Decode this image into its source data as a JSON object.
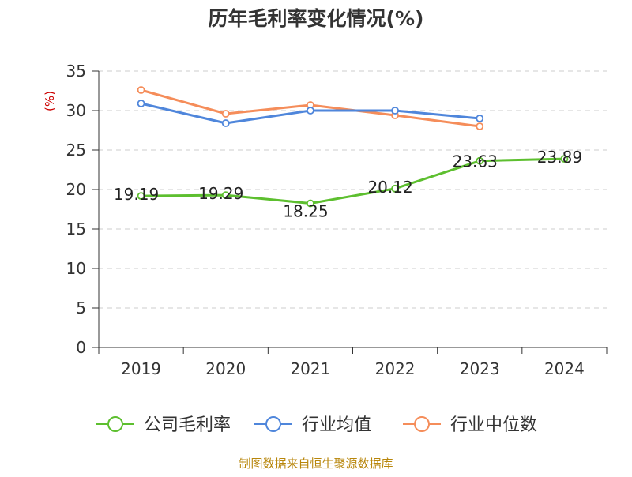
{
  "chart_data": {
    "type": "line",
    "title": "历年毛利率变化情况(%)",
    "ylabel": "(%)",
    "xlabel": "",
    "categories": [
      "2019",
      "2020",
      "2021",
      "2022",
      "2023",
      "2024"
    ],
    "ylim": [
      0,
      35
    ],
    "yticks": [
      0,
      5,
      10,
      15,
      20,
      25,
      30,
      35
    ],
    "grid": true,
    "legend_position": "bottom",
    "series": [
      {
        "name": "公司毛利率",
        "color": "#5dbf2f",
        "values": [
          19.19,
          19.29,
          18.25,
          20.12,
          23.63,
          23.89
        ],
        "labels": [
          "19.19",
          "19.29",
          "18.25",
          "20.12",
          "23.63",
          "23.89"
        ]
      },
      {
        "name": "行业均值",
        "color": "#4f86db",
        "values": [
          30.9,
          28.4,
          30.0,
          30.0,
          29.0,
          null
        ]
      },
      {
        "name": "行业中位数",
        "color": "#f58d5a",
        "values": [
          32.6,
          29.6,
          30.7,
          29.4,
          28.0,
          null
        ]
      }
    ]
  },
  "colors": {
    "title": "#333333",
    "axis": "#333333",
    "ylabel": "#cc0000",
    "grid": "#cccccc",
    "source": "#b8860b"
  },
  "source": "制图数据来自恒生聚源数据库"
}
